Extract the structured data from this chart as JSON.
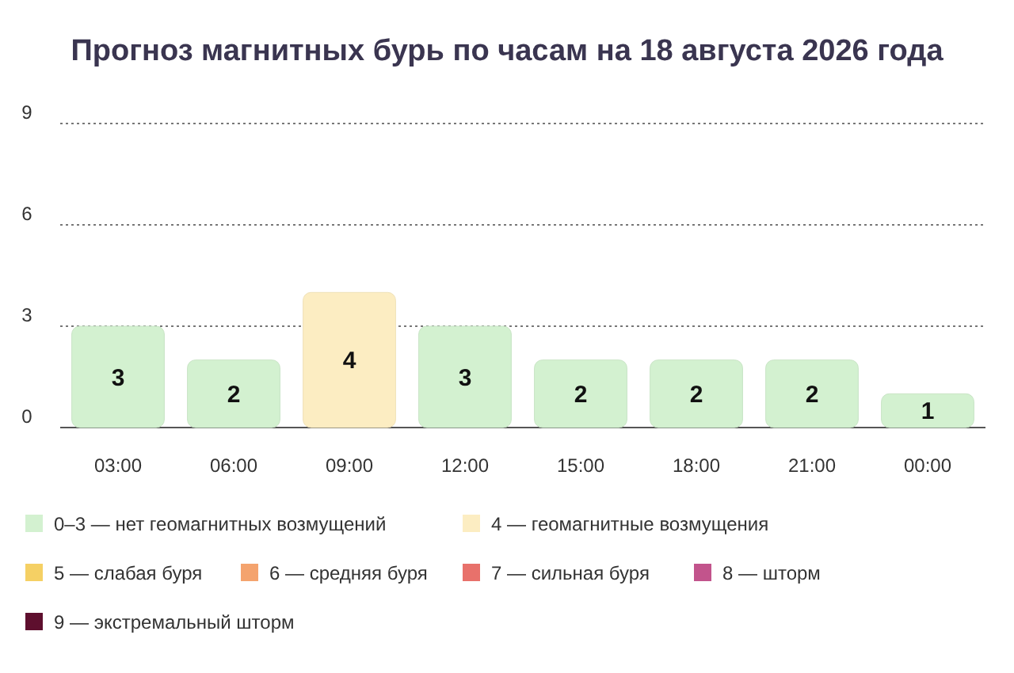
{
  "chart_data": {
    "type": "bar",
    "title": "Прогноз магнитных бурь по часам на 18 августа 2026 года",
    "categories": [
      "03:00",
      "06:00",
      "09:00",
      "12:00",
      "15:00",
      "18:00",
      "21:00",
      "00:00"
    ],
    "series": [
      {
        "name": "0–3 — нет геомагнитных возмущений",
        "color": "#d3f1d0",
        "values": [
          3,
          2,
          null,
          3,
          2,
          2,
          2,
          1
        ]
      },
      {
        "name": "4 — геомагнитные возмущения",
        "color": "#fcedc2",
        "values": [
          null,
          null,
          4,
          null,
          null,
          null,
          null,
          null
        ]
      },
      {
        "name": "5 — слабая буря",
        "color": "#f5d064",
        "values": [
          null,
          null,
          null,
          null,
          null,
          null,
          null,
          null
        ]
      },
      {
        "name": "6 — средняя буря",
        "color": "#f4a36e",
        "values": [
          null,
          null,
          null,
          null,
          null,
          null,
          null,
          null
        ]
      },
      {
        "name": "7 — сильная буря",
        "color": "#e8716b",
        "values": [
          null,
          null,
          null,
          null,
          null,
          null,
          null,
          null
        ]
      },
      {
        "name": "8 — шторм",
        "color": "#c2548c",
        "values": [
          null,
          null,
          null,
          null,
          null,
          null,
          null,
          null
        ]
      },
      {
        "name": "9 — экстремальный шторм",
        "color": "#5e0f2e",
        "values": [
          null,
          null,
          null,
          null,
          null,
          null,
          null,
          null
        ]
      }
    ],
    "ylim": [
      0,
      9
    ],
    "yticks": [
      0,
      3,
      6,
      9
    ],
    "grid": "y",
    "data_labels": true,
    "legend": "bottom"
  }
}
